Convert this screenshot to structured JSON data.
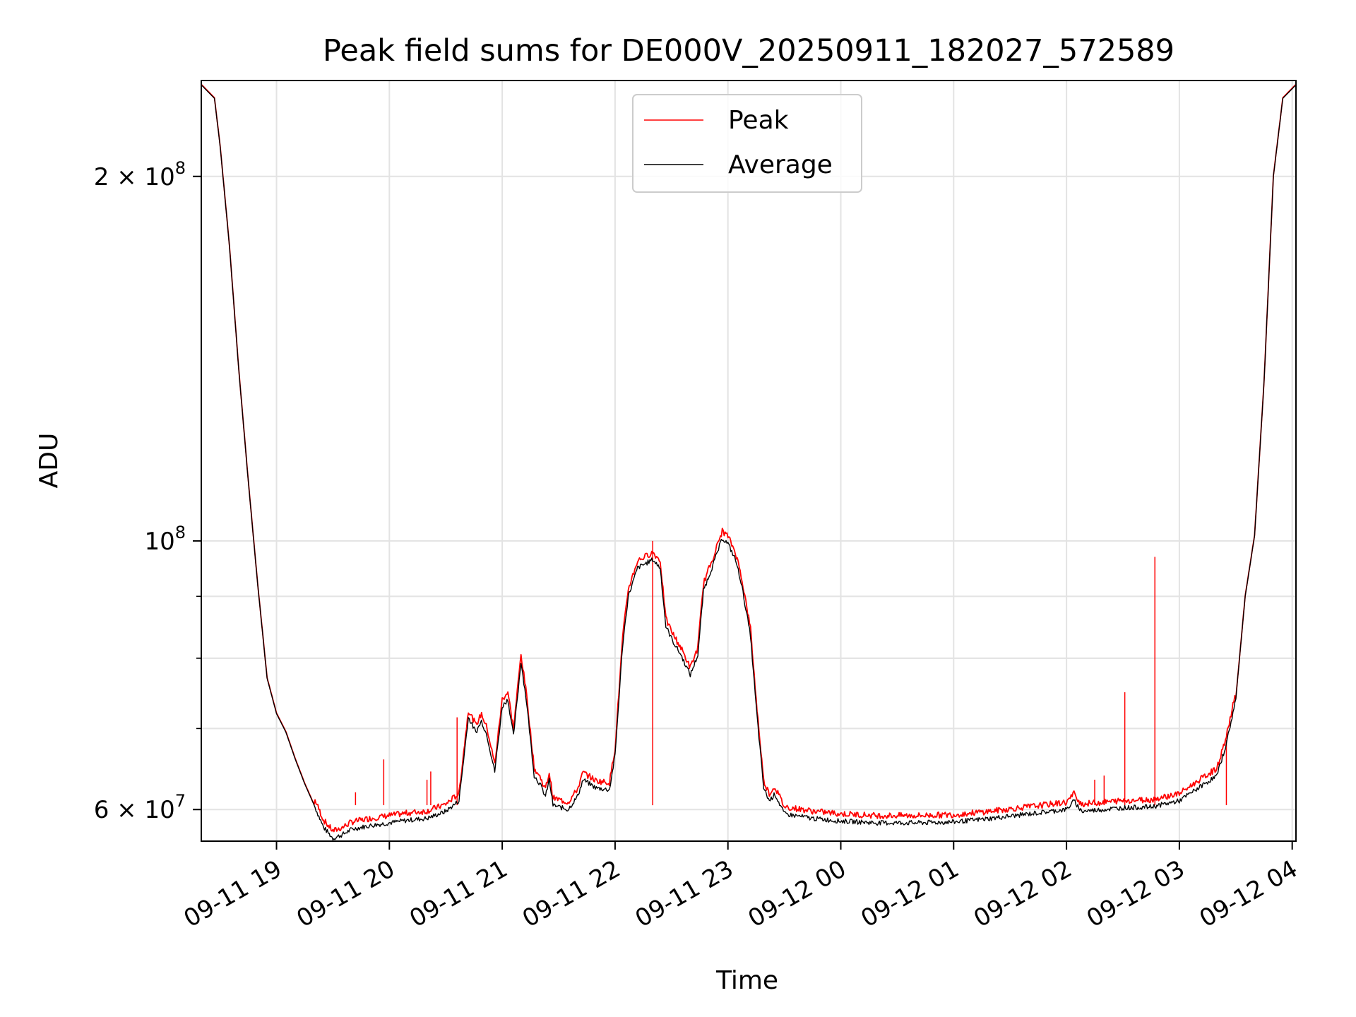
{
  "chart_data": {
    "type": "line",
    "title": "Peak field sums for DE000V_20250911_182027_572589",
    "xlabel": "Time",
    "ylabel": "ADU",
    "yscale": "log",
    "ylim": [
      56500000,
      240000000
    ],
    "xlim": [
      "2025-09-11 18:20",
      "2025-09-12 04:02"
    ],
    "grid": true,
    "legend_position": "top-center",
    "y_ticks": [
      {
        "value": 60000000,
        "label": "6 × 10⁷",
        "mantissa": "6 × 10",
        "exp": "7"
      },
      {
        "value": 100000000,
        "label": "10⁸",
        "mantissa": "10",
        "exp": "8"
      },
      {
        "value": 200000000,
        "label": "2 × 10⁸",
        "mantissa": "2 × 10",
        "exp": "8"
      }
    ],
    "y_minor_ticks": [
      70000000,
      80000000,
      90000000
    ],
    "x_ticks": [
      {
        "time": "2025-09-11 19:00",
        "label": "09-11 19"
      },
      {
        "time": "2025-09-11 20:00",
        "label": "09-11 20"
      },
      {
        "time": "2025-09-11 21:00",
        "label": "09-11 21"
      },
      {
        "time": "2025-09-11 22:00",
        "label": "09-11 22"
      },
      {
        "time": "2025-09-11 23:00",
        "label": "09-11 23"
      },
      {
        "time": "2025-09-12 00:00",
        "label": "09-12 00"
      },
      {
        "time": "2025-09-12 01:00",
        "label": "09-12 01"
      },
      {
        "time": "2025-09-12 02:00",
        "label": "09-12 02"
      },
      {
        "time": "2025-09-12 03:00",
        "label": "09-12 03"
      },
      {
        "time": "2025-09-12 04:00",
        "label": "09-12 04"
      }
    ],
    "series": [
      {
        "name": "Average",
        "color": "#000000",
        "points": [
          [
            "2025-09-11 18:20",
            238000000
          ],
          [
            "2025-09-11 18:27",
            232000000
          ],
          [
            "2025-09-11 18:30",
            212000000
          ],
          [
            "2025-09-11 18:35",
            175000000
          ],
          [
            "2025-09-11 18:40",
            138000000
          ],
          [
            "2025-09-11 18:45",
            112000000
          ],
          [
            "2025-09-11 18:50",
            92000000
          ],
          [
            "2025-09-11 18:55",
            77000000
          ],
          [
            "2025-09-11 19:00",
            72000000
          ],
          [
            "2025-09-11 19:05",
            69500000
          ],
          [
            "2025-09-11 19:10",
            66000000
          ],
          [
            "2025-09-11 19:15",
            63000000
          ],
          [
            "2025-09-11 19:20",
            60500000
          ],
          [
            "2025-09-11 19:25",
            58000000
          ],
          [
            "2025-09-11 19:30",
            56800000
          ],
          [
            "2025-09-11 19:35",
            57200000
          ],
          [
            "2025-09-11 19:40",
            57800000
          ],
          [
            "2025-09-11 19:50",
            58200000
          ],
          [
            "2025-09-11 20:00",
            58500000
          ],
          [
            "2025-09-11 20:10",
            58800000
          ],
          [
            "2025-09-11 20:20",
            59000000
          ],
          [
            "2025-09-11 20:30",
            59800000
          ],
          [
            "2025-09-11 20:37",
            61000000
          ],
          [
            "2025-09-11 20:42",
            71500000
          ],
          [
            "2025-09-11 20:46",
            69500000
          ],
          [
            "2025-09-11 20:49",
            71000000
          ],
          [
            "2025-09-11 20:52",
            69000000
          ],
          [
            "2025-09-11 20:56",
            64500000
          ],
          [
            "2025-09-11 21:00",
            73000000
          ],
          [
            "2025-09-11 21:03",
            74000000
          ],
          [
            "2025-09-11 21:06",
            69000000
          ],
          [
            "2025-09-11 21:10",
            79500000
          ],
          [
            "2025-09-11 21:13",
            73500000
          ],
          [
            "2025-09-11 21:17",
            64000000
          ],
          [
            "2025-09-11 21:20",
            63000000
          ],
          [
            "2025-09-11 21:23",
            61500000
          ],
          [
            "2025-09-11 21:25",
            63500000
          ],
          [
            "2025-09-11 21:27",
            60500000
          ],
          [
            "2025-09-11 21:35",
            60000000
          ],
          [
            "2025-09-11 21:40",
            61500000
          ],
          [
            "2025-09-11 21:43",
            63500000
          ],
          [
            "2025-09-11 21:50",
            62500000
          ],
          [
            "2025-09-11 21:57",
            62300000
          ],
          [
            "2025-09-11 22:00",
            66500000
          ],
          [
            "2025-09-11 22:04",
            82000000
          ],
          [
            "2025-09-11 22:07",
            90000000
          ],
          [
            "2025-09-11 22:12",
            95000000
          ],
          [
            "2025-09-11 22:20",
            96500000
          ],
          [
            "2025-09-11 22:24",
            95000000
          ],
          [
            "2025-09-11 22:27",
            85000000
          ],
          [
            "2025-09-11 22:31",
            82500000
          ],
          [
            "2025-09-11 22:35",
            80500000
          ],
          [
            "2025-09-11 22:40",
            77500000
          ],
          [
            "2025-09-11 22:44",
            80500000
          ],
          [
            "2025-09-11 22:47",
            91000000
          ],
          [
            "2025-09-11 22:52",
            95500000
          ],
          [
            "2025-09-11 22:57",
            100500000
          ],
          [
            "2025-09-11 23:00",
            99500000
          ],
          [
            "2025-09-11 23:04",
            96500000
          ],
          [
            "2025-09-11 23:07",
            92500000
          ],
          [
            "2025-09-11 23:12",
            83500000
          ],
          [
            "2025-09-11 23:15",
            73000000
          ],
          [
            "2025-09-11 23:19",
            62500000
          ],
          [
            "2025-09-11 23:22",
            61000000
          ],
          [
            "2025-09-11 23:25",
            61800000
          ],
          [
            "2025-09-11 23:30",
            59500000
          ],
          [
            "2025-09-11 23:45",
            59000000
          ],
          [
            "2025-09-12 00:00",
            58700000
          ],
          [
            "2025-09-12 00:20",
            58500000
          ],
          [
            "2025-09-12 00:40",
            58500000
          ],
          [
            "2025-09-12 01:00",
            58600000
          ],
          [
            "2025-09-12 01:20",
            59000000
          ],
          [
            "2025-09-12 01:40",
            59500000
          ],
          [
            "2025-09-12 02:00",
            60000000
          ],
          [
            "2025-09-12 02:04",
            61000000
          ],
          [
            "2025-09-12 02:08",
            59800000
          ],
          [
            "2025-09-12 02:30",
            60200000
          ],
          [
            "2025-09-12 02:45",
            60300000
          ],
          [
            "2025-09-12 03:00",
            61000000
          ],
          [
            "2025-09-12 03:10",
            62500000
          ],
          [
            "2025-09-12 03:20",
            64000000
          ],
          [
            "2025-09-12 03:25",
            68000000
          ],
          [
            "2025-09-12 03:30",
            74000000
          ],
          [
            "2025-09-12 03:35",
            90000000
          ],
          [
            "2025-09-12 03:40",
            101000000
          ],
          [
            "2025-09-12 03:45",
            135000000
          ],
          [
            "2025-09-12 03:50",
            200000000
          ],
          [
            "2025-09-12 03:55",
            232000000
          ],
          [
            "2025-09-12 04:02",
            238000000
          ]
        ]
      },
      {
        "name": "Peak",
        "color": "#ff0000",
        "spikes": [
          [
            "2025-09-11 19:38",
            60500000
          ],
          [
            "2025-09-11 19:42",
            62000000
          ],
          [
            "2025-09-11 19:57",
            66000000
          ],
          [
            "2025-09-11 20:20",
            63500000
          ],
          [
            "2025-09-11 20:22",
            64500000
          ],
          [
            "2025-09-11 20:36",
            71500000
          ],
          [
            "2025-09-11 22:20",
            100000000
          ],
          [
            "2025-09-12 02:15",
            63500000
          ],
          [
            "2025-09-12 02:20",
            64000000
          ],
          [
            "2025-09-12 02:31",
            75000000
          ],
          [
            "2025-09-12 02:47",
            97000000
          ],
          [
            "2025-09-12 03:25",
            68500000
          ]
        ]
      }
    ]
  }
}
